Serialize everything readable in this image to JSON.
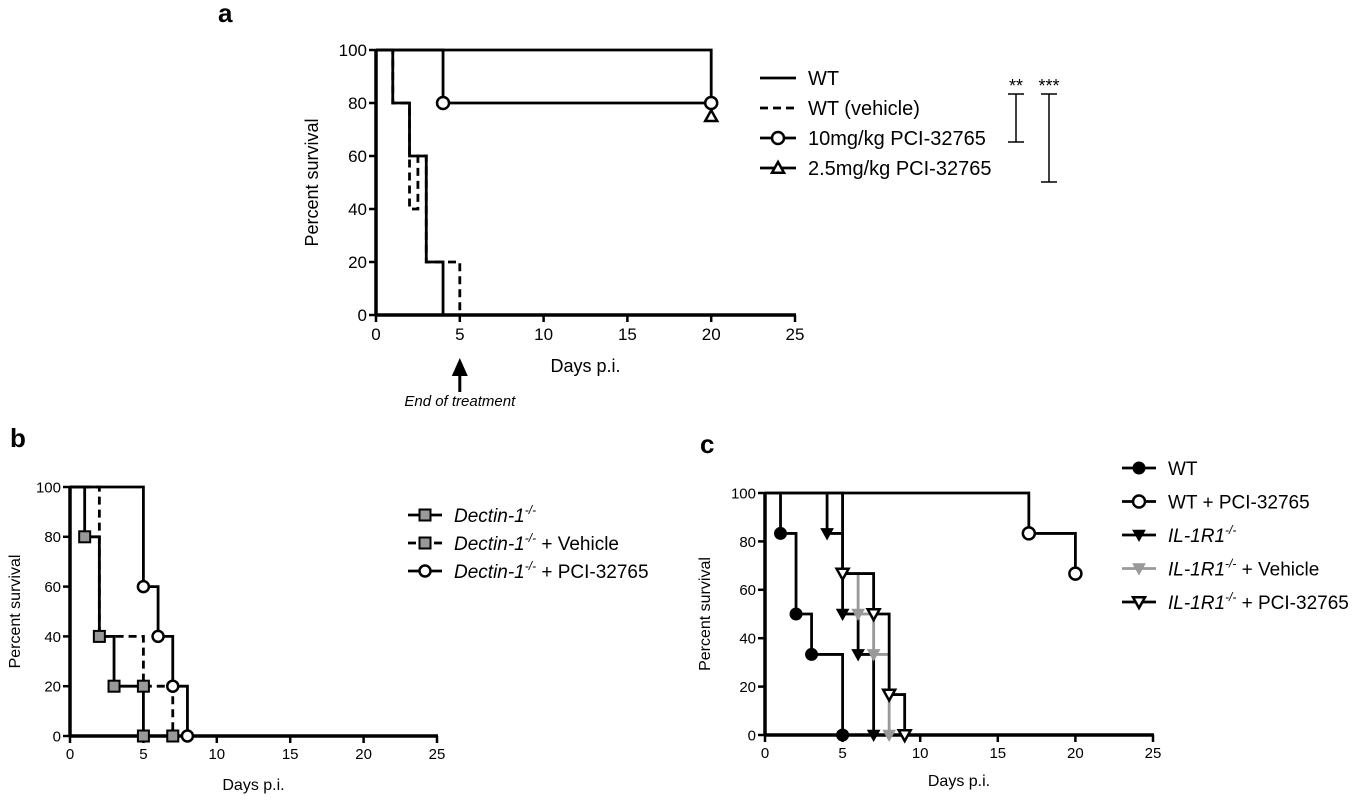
{
  "chart_data": [
    {
      "panel": "a",
      "type": "line",
      "step": true,
      "xlabel": "Days p.i.",
      "ylabel": "Percent survival",
      "xlim": [
        0,
        25
      ],
      "ylim": [
        0,
        100
      ],
      "xticks": [
        0,
        5,
        10,
        15,
        20,
        25
      ],
      "yticks": [
        0,
        20,
        40,
        60,
        80,
        100
      ],
      "annotation": "End of treatment",
      "annotation_x": 5,
      "significance": [
        "**",
        "***"
      ],
      "series": [
        {
          "name": "WT",
          "style": "solid",
          "marker": "none",
          "color": "#000000",
          "x": [
            0,
            1,
            2,
            3,
            4
          ],
          "y": [
            100,
            80,
            60,
            20,
            0
          ]
        },
        {
          "name": "WT (vehicle)",
          "style": "dashed",
          "marker": "none",
          "color": "#000000",
          "x": [
            0,
            1,
            2,
            2.5,
            3,
            5
          ],
          "y": [
            100,
            80,
            40,
            60,
            20,
            0
          ]
        },
        {
          "name": "10mg/kg PCI-32765",
          "style": "solid",
          "marker": "circle-open",
          "color": "#000000",
          "x": [
            0,
            4,
            20
          ],
          "y": [
            100,
            80,
            80
          ],
          "markers_at": [
            [
              4,
              80
            ],
            [
              20,
              80
            ]
          ]
        },
        {
          "name": "2.5mg/kg PCI-32765",
          "style": "solid",
          "marker": "triangle-open",
          "color": "#000000",
          "x": [
            0,
            20
          ],
          "y": [
            100,
            75
          ],
          "markers_at": [
            [
              20,
              75
            ]
          ]
        }
      ]
    },
    {
      "panel": "b",
      "type": "line",
      "step": true,
      "xlabel": "Days p.i.",
      "ylabel": "Percent survival",
      "xlim": [
        0,
        25
      ],
      "ylim": [
        0,
        100
      ],
      "xticks": [
        0,
        5,
        10,
        15,
        20,
        25
      ],
      "yticks": [
        0,
        20,
        40,
        60,
        80,
        100
      ],
      "series": [
        {
          "name": "Dectin-1",
          "sup": "-/-",
          "suffix": "",
          "style": "solid",
          "marker": "square-gray",
          "color": "#000000",
          "x": [
            0,
            1,
            2,
            3,
            5
          ],
          "y": [
            100,
            80,
            40,
            20,
            0
          ],
          "markers_at": [
            [
              1,
              80
            ],
            [
              2,
              40
            ],
            [
              3,
              20
            ],
            [
              5,
              20
            ],
            [
              5,
              0
            ]
          ]
        },
        {
          "name": "Dectin-1",
          "sup": "-/-",
          "suffix": " + Vehicle",
          "style": "dashed",
          "marker": "square-gray",
          "color": "#000000",
          "x": [
            0,
            2,
            5,
            7
          ],
          "y": [
            100,
            40,
            20,
            0
          ],
          "markers_at": [
            [
              7,
              0
            ]
          ]
        },
        {
          "name": "Dectin-1",
          "sup": "-/-",
          "suffix": " + PCI-32765",
          "style": "solid",
          "marker": "circle-open",
          "color": "#000000",
          "x": [
            0,
            5,
            6,
            7,
            8
          ],
          "y": [
            100,
            60,
            40,
            20,
            0
          ],
          "markers_at": [
            [
              5,
              60
            ],
            [
              6,
              40
            ],
            [
              7,
              20
            ],
            [
              8,
              0
            ]
          ]
        }
      ]
    },
    {
      "panel": "c",
      "type": "line",
      "step": true,
      "xlabel": "Days p.i.",
      "ylabel": "Percent survival",
      "xlim": [
        0,
        25
      ],
      "ylim": [
        0,
        100
      ],
      "xticks": [
        0,
        5,
        10,
        15,
        20,
        25
      ],
      "yticks": [
        0,
        20,
        40,
        60,
        80,
        100
      ],
      "series": [
        {
          "name": "WT",
          "sup": "",
          "suffix": "",
          "italic": false,
          "style": "solid",
          "marker": "circle-filled",
          "color": "#000000",
          "x": [
            0,
            1,
            2,
            3,
            5
          ],
          "y": [
            100,
            83.3,
            50,
            33.3,
            0
          ],
          "markers_at": [
            [
              1,
              83.3
            ],
            [
              2,
              50
            ],
            [
              3,
              33.3
            ],
            [
              5,
              0
            ]
          ]
        },
        {
          "name": "WT + PCI-32765",
          "sup": "",
          "suffix": "",
          "italic": false,
          "style": "solid",
          "marker": "circle-open",
          "color": "#000000",
          "x": [
            0,
            17,
            20
          ],
          "y": [
            100,
            83.3,
            66.7
          ],
          "markers_at": [
            [
              17,
              83.3
            ],
            [
              20,
              66.7
            ]
          ]
        },
        {
          "name": "IL-1R1",
          "sup": "-/-",
          "suffix": "",
          "italic": true,
          "style": "solid",
          "marker": "triangle-down-filled",
          "color": "#000000",
          "x": [
            0,
            4,
            5,
            6,
            7
          ],
          "y": [
            100,
            83.3,
            50,
            33.3,
            0
          ],
          "markers_at": [
            [
              4,
              83.3
            ],
            [
              5,
              50
            ],
            [
              6,
              33.3
            ],
            [
              7,
              0
            ]
          ]
        },
        {
          "name": "IL-1R1",
          "sup": "-/-",
          "suffix": " + Vehicle",
          "italic": true,
          "style": "solid",
          "marker": "triangle-down-filled",
          "color": "#999999",
          "x": [
            0,
            5,
            6,
            7,
            8
          ],
          "y": [
            100,
            66.7,
            50,
            33.3,
            0
          ],
          "markers_at": [
            [
              6,
              50
            ],
            [
              7,
              33.3
            ],
            [
              8,
              0
            ]
          ]
        },
        {
          "name": "IL-1R1",
          "sup": "-/-",
          "suffix": " + PCI-32765",
          "italic": true,
          "style": "solid",
          "marker": "triangle-down-open",
          "color": "#000000",
          "x": [
            0,
            5,
            7,
            8,
            9
          ],
          "y": [
            100,
            66.7,
            50,
            16.7,
            0
          ],
          "markers_at": [
            [
              5,
              66.7
            ],
            [
              7,
              50
            ],
            [
              8,
              16.7
            ],
            [
              9,
              0
            ]
          ]
        }
      ]
    }
  ],
  "panel_labels": {
    "a": "a",
    "b": "b",
    "c": "c"
  }
}
